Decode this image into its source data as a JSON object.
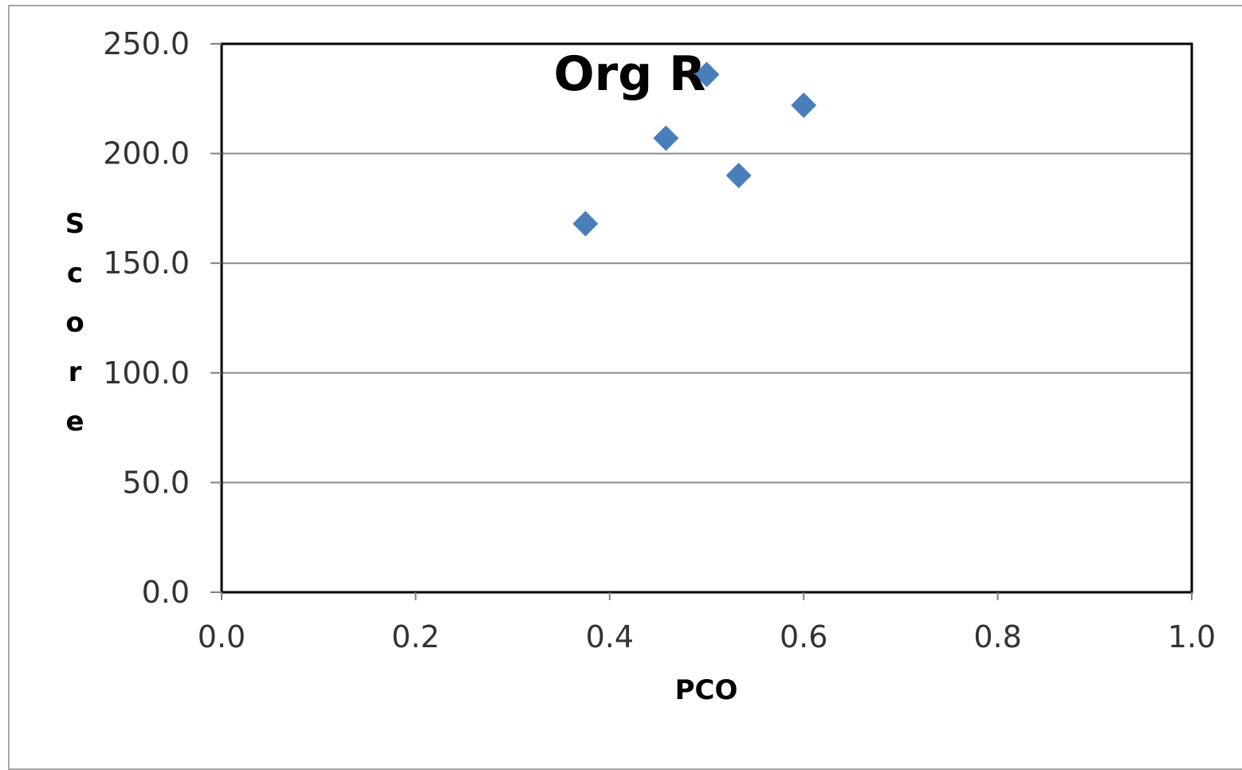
{
  "chart_data": {
    "type": "scatter",
    "title": "Org R",
    "xlabel": "PCO",
    "ylabel": "Score",
    "xlim": [
      0.0,
      1.0
    ],
    "ylim": [
      0.0,
      250.0
    ],
    "x_ticks": [
      "0.0",
      "0.2",
      "0.4",
      "0.6",
      "0.8",
      "1.0"
    ],
    "y_ticks": [
      "0.0",
      "50.0",
      "100.0",
      "150.0",
      "200.0",
      "250.0"
    ],
    "grid": "horizontal",
    "legend": "none",
    "marker": "diamond",
    "marker_color": "#4a7ebb",
    "series": [
      {
        "points": [
          {
            "x": 0.375,
            "y": 168.0
          },
          {
            "x": 0.458,
            "y": 207.0
          },
          {
            "x": 0.5,
            "y": 236.0
          },
          {
            "x": 0.533,
            "y": 190.0
          },
          {
            "x": 0.6,
            "y": 222.0
          }
        ]
      }
    ]
  }
}
